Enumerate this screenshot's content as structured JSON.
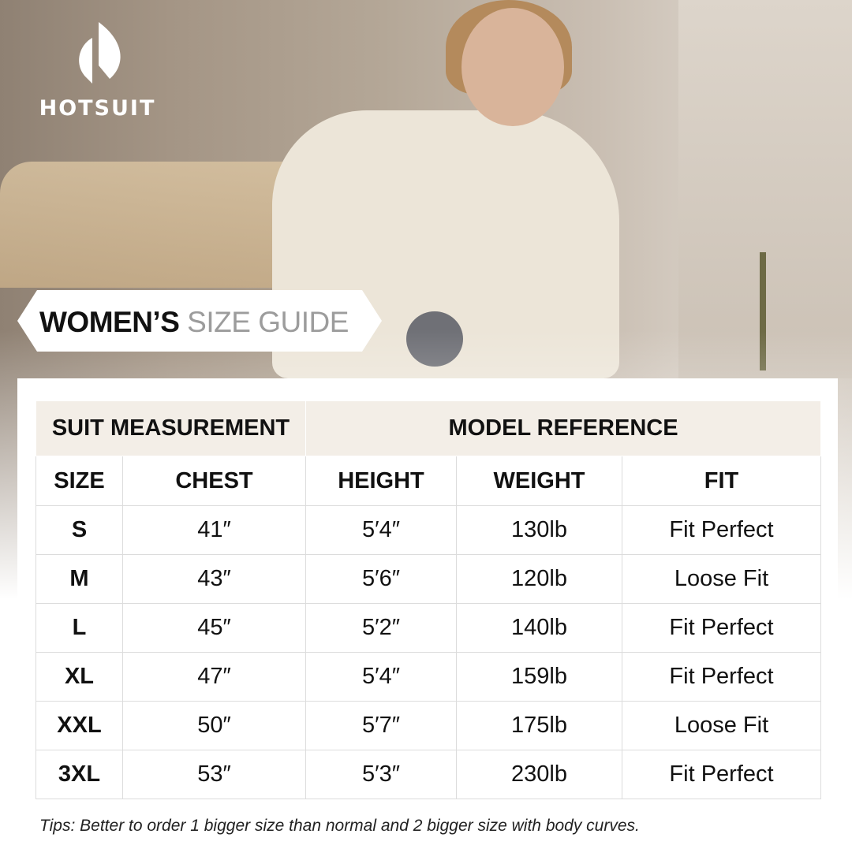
{
  "brand": {
    "logo_text": "HOTSUIT"
  },
  "banner": {
    "title_bold": "WOMEN’S",
    "title_light": "SIZE GUIDE"
  },
  "table": {
    "groups": [
      "SUIT MEASUREMENT",
      "MODEL REFERENCE"
    ],
    "columns": [
      "SIZE",
      "CHEST",
      "HEIGHT",
      "WEIGHT",
      "FIT"
    ],
    "rows": [
      [
        "S",
        "41″",
        "5′4″",
        "130lb",
        "Fit Perfect"
      ],
      [
        "M",
        "43″",
        "5′6″",
        "120lb",
        "Loose Fit"
      ],
      [
        "L",
        "45″",
        "5′2″",
        "140lb",
        "Fit Perfect"
      ],
      [
        "XL",
        "47″",
        "5′4″",
        "159lb",
        "Fit Perfect"
      ],
      [
        "XXL",
        "50″",
        "5′7″",
        "175lb",
        "Loose Fit"
      ],
      [
        "3XL",
        "53″",
        "5′3″",
        "230lb",
        "Fit Perfect"
      ]
    ]
  },
  "tips": "Tips: Better to order 1 bigger size than normal and 2 bigger size with body curves.",
  "colors": {
    "group_header_bg": "#f3eee7",
    "banner_light_text": "#9c9c9c"
  }
}
